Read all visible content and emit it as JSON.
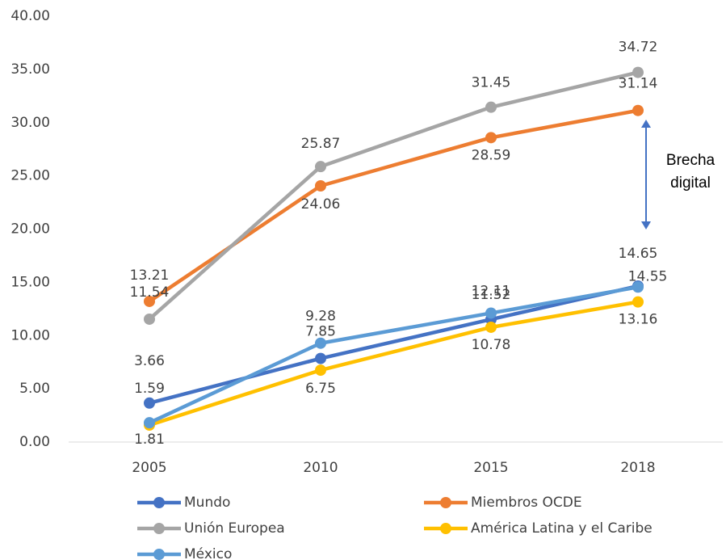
{
  "chart_data": {
    "type": "line",
    "categories": [
      "2005",
      "2010",
      "2015",
      "2018"
    ],
    "series": [
      {
        "name": "Mundo",
        "color": "#4472c4",
        "values": [
          3.66,
          7.85,
          11.52,
          14.65
        ]
      },
      {
        "name": "Miembros OCDE",
        "color": "#ed7d31",
        "values": [
          13.21,
          24.06,
          28.59,
          31.14
        ]
      },
      {
        "name": "Unión Europea",
        "color": "#a5a5a5",
        "values": [
          11.54,
          25.87,
          31.45,
          34.72
        ]
      },
      {
        "name": "América Latina y el Caribe",
        "color": "#ffc000",
        "values": [
          1.59,
          6.75,
          10.78,
          13.16
        ]
      },
      {
        "name": "México",
        "color": "#5b9bd5",
        "values": [
          1.81,
          9.28,
          12.11,
          14.55
        ]
      }
    ],
    "ylim": [
      0,
      40
    ],
    "yticks": [
      {
        "value": 0,
        "label": "0.00"
      },
      {
        "value": 5,
        "label": "5.00"
      },
      {
        "value": 10,
        "label": "10.00"
      },
      {
        "value": 15,
        "label": "15.00"
      },
      {
        "value": 20,
        "label": "20.00"
      },
      {
        "value": 25,
        "label": "25.00"
      },
      {
        "value": 30,
        "label": "30.00"
      },
      {
        "value": 35,
        "label": "35.00"
      },
      {
        "value": 40,
        "label": "40.00"
      }
    ],
    "annotation": "Brecha digital",
    "grid": false
  }
}
